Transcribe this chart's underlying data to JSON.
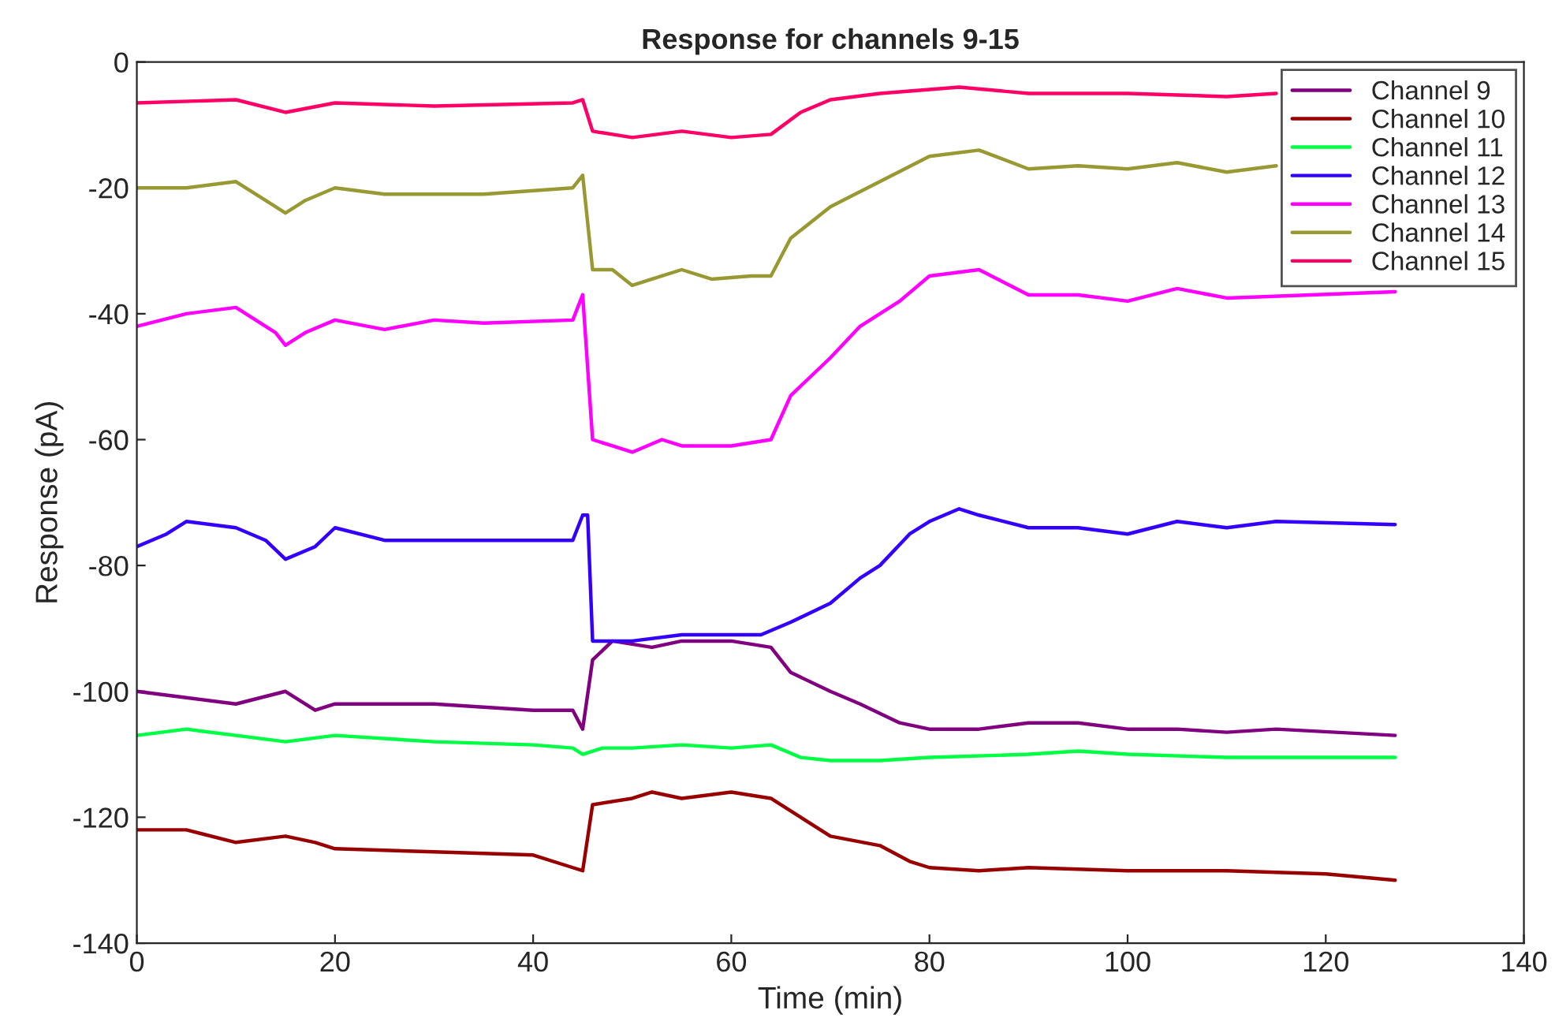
{
  "chart_data": {
    "type": "line",
    "title": "Response for channels 9-15",
    "xlabel": "Time (min)",
    "ylabel": "Response (pA)",
    "xlim": [
      0,
      140
    ],
    "xticks": [
      0,
      20,
      40,
      60,
      80,
      100,
      120,
      140
    ],
    "ylim": [
      -140,
      0
    ],
    "yticks": [
      -140,
      -120,
      -100,
      -80,
      -60,
      -40,
      -20,
      0
    ],
    "grid": false,
    "legend": "top right",
    "marker": "none",
    "line_style": "solid",
    "series": [
      {
        "name": "Channel 9",
        "color": "#800080",
        "x": [
          0,
          5,
          10,
          15,
          18,
          20,
          30,
          40,
          44,
          45,
          46,
          48,
          52,
          55,
          60,
          64,
          66,
          70,
          73,
          77,
          80,
          85,
          90,
          95,
          100,
          105,
          110,
          115,
          127
        ],
        "values": [
          -100,
          -101,
          -102,
          -100,
          -103,
          -102,
          -102,
          -103,
          -103,
          -106,
          -95,
          -92,
          -93,
          -92,
          -92,
          -93,
          -97,
          -100,
          -102,
          -105,
          -106,
          -106,
          -105,
          -105,
          -106,
          -106,
          -106.5,
          -106,
          -107
        ]
      },
      {
        "name": "Channel 10",
        "color": "#990000",
        "x": [
          0,
          5,
          10,
          15,
          18,
          20,
          30,
          40,
          44,
          45,
          46,
          50,
          52,
          55,
          60,
          64,
          67,
          70,
          75,
          78,
          80,
          85,
          90,
          100,
          110,
          120,
          127
        ],
        "values": [
          -122,
          -122,
          -124,
          -123,
          -124,
          -125,
          -125.5,
          -126,
          -128,
          -128.5,
          -118,
          -117,
          -116,
          -117,
          -116,
          -117,
          -120,
          -123,
          -124.5,
          -127,
          -128,
          -128.5,
          -128,
          -128.5,
          -128.5,
          -129,
          -130
        ]
      },
      {
        "name": "Channel 11",
        "color": "#00ff44",
        "x": [
          0,
          5,
          10,
          15,
          20,
          30,
          40,
          44,
          45,
          47,
          50,
          55,
          60,
          64,
          67,
          70,
          75,
          80,
          90,
          95,
          100,
          110,
          120,
          127
        ],
        "values": [
          -107,
          -106,
          -107,
          -108,
          -107,
          -108,
          -108.5,
          -109,
          -110,
          -109,
          -109,
          -108.5,
          -109,
          -108.5,
          -110.5,
          -111,
          -111,
          -110.5,
          -110,
          -109.5,
          -110,
          -110.5,
          -110.5,
          -110.5
        ]
      },
      {
        "name": "Channel 12",
        "color": "#3300ff",
        "x": [
          0,
          3,
          5,
          10,
          13,
          15,
          18,
          20,
          25,
          30,
          40,
          44,
          45,
          45.5,
          46,
          50,
          55,
          60,
          63,
          66,
          70,
          73,
          75,
          78,
          80,
          83,
          85,
          90,
          95,
          100,
          105,
          110,
          115,
          127
        ],
        "values": [
          -77,
          -75,
          -73,
          -74,
          -76,
          -79,
          -77,
          -74,
          -76,
          -76,
          -76,
          -76,
          -72,
          -72,
          -92,
          -92,
          -91,
          -91,
          -91,
          -89,
          -86,
          -82,
          -80,
          -75,
          -73,
          -71,
          -72,
          -74,
          -74,
          -75,
          -73,
          -74,
          -73,
          -73.5
        ]
      },
      {
        "name": "Channel 13",
        "color": "#ff00ff",
        "x": [
          0,
          5,
          10,
          14,
          15,
          17,
          20,
          25,
          30,
          35,
          44,
          45,
          46,
          48,
          50,
          53,
          55,
          60,
          64,
          66,
          70,
          73,
          77,
          80,
          85,
          90,
          95,
          100,
          105,
          110,
          127
        ],
        "values": [
          -42,
          -40,
          -39,
          -43,
          -45,
          -43,
          -41,
          -42.5,
          -41,
          -41.5,
          -41,
          -37,
          -60,
          -61,
          -62,
          -60,
          -61,
          -61,
          -60,
          -53,
          -47,
          -42,
          -38,
          -34,
          -33,
          -37,
          -37,
          -38,
          -36,
          -37.5,
          -36.5
        ]
      },
      {
        "name": "Channel 14",
        "color": "#999933",
        "x": [
          0,
          5,
          10,
          13,
          15,
          17,
          20,
          25,
          35,
          44,
          45,
          46,
          48,
          50,
          53,
          55,
          58,
          62,
          64,
          66,
          70,
          75,
          80,
          85,
          90,
          95,
          100,
          105,
          110,
          115
        ],
        "values": [
          -20,
          -20,
          -19,
          -22,
          -24,
          -22,
          -20,
          -21,
          -21,
          -20,
          -18,
          -33,
          -33,
          -35.5,
          -34,
          -33,
          -34.5,
          -34,
          -34,
          -28,
          -23,
          -19,
          -15,
          -14,
          -17,
          -16.5,
          -17,
          -16,
          -17.5,
          -16.5
        ]
      },
      {
        "name": "Channel 15",
        "color": "#ff0066",
        "x": [
          0,
          10,
          15,
          20,
          30,
          44,
          45,
          46,
          50,
          55,
          60,
          64,
          67,
          70,
          75,
          83,
          90,
          100,
          110,
          115
        ],
        "values": [
          -6.5,
          -6,
          -8,
          -6.5,
          -7,
          -6.5,
          -6,
          -11,
          -12,
          -11,
          -12,
          -11.5,
          -8,
          -6,
          -5,
          -4,
          -5,
          -5,
          -5.5,
          -5
        ]
      }
    ]
  }
}
